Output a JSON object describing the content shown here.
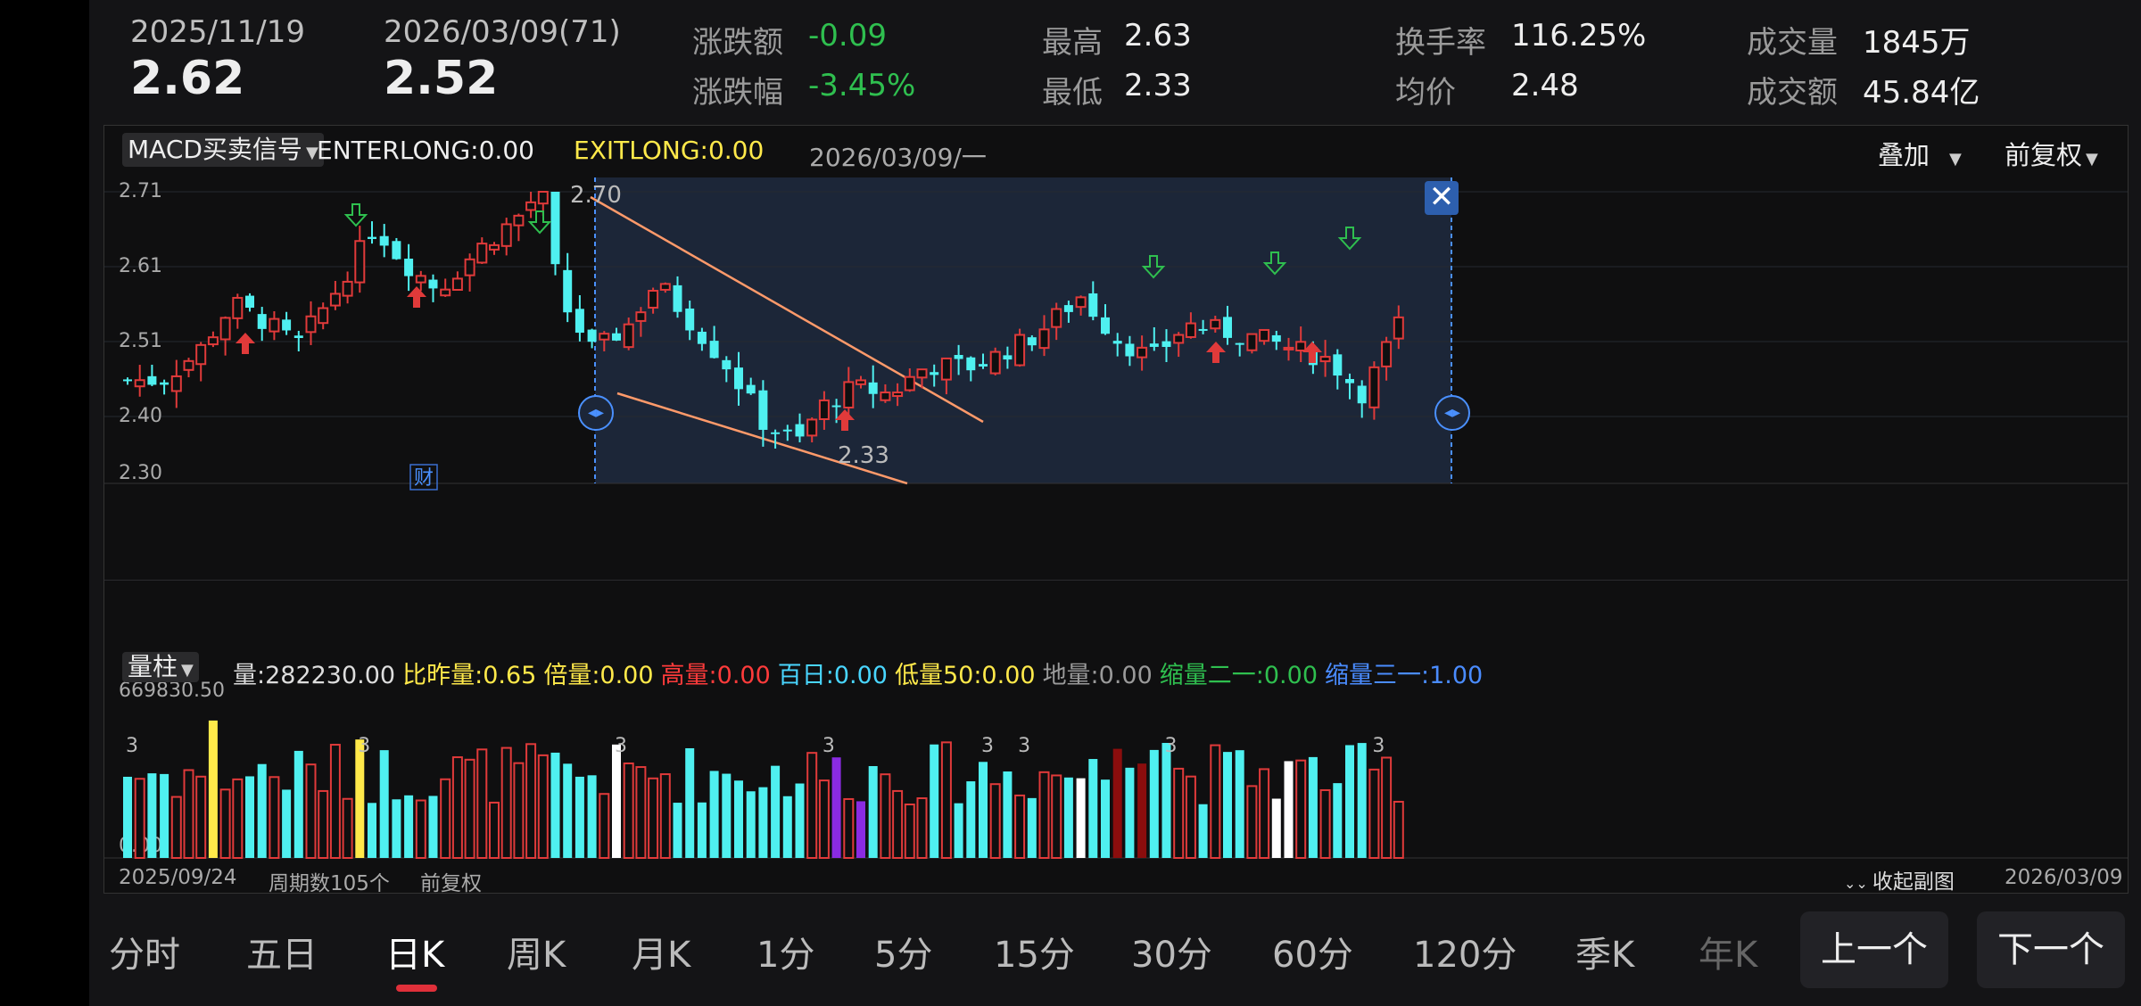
{
  "header": {
    "date1": "2025/11/19",
    "price1": "2.62",
    "date2": "2026/03/09(71)",
    "price2": "2.52",
    "stats": [
      {
        "label": "涨跌额",
        "value": "-0.09",
        "color": "#2fbf4f"
      },
      {
        "label": "涨跌幅",
        "value": "-3.45%",
        "color": "#2fbf4f"
      },
      {
        "label": "最高",
        "value": "2.63"
      },
      {
        "label": "最低",
        "value": "2.33"
      },
      {
        "label": "换手率",
        "value": "116.25%"
      },
      {
        "label": "均价",
        "value": "2.48"
      },
      {
        "label": "成交量",
        "value": "1845万"
      },
      {
        "label": "成交额",
        "value": "45.84亿"
      }
    ]
  },
  "main_indicator": {
    "selector": "MACD买卖信号",
    "enterlong": "ENTERLONG:0.00",
    "exitlong": "EXITLONG:0.00",
    "date": "2026/03/09/一",
    "overlay": "叠加",
    "adjust": "前复权"
  },
  "price_axis": [
    "2.71",
    "2.61",
    "2.51",
    "2.40",
    "2.30"
  ],
  "annotations": {
    "high_label": "2.70",
    "low_label": "2.33",
    "cai": "财"
  },
  "volume_indicator": {
    "selector": "量柱",
    "items": [
      {
        "text": "量:282230.00",
        "color": "#dddddd"
      },
      {
        "text": "比昨量:0.65",
        "color": "#ffe94a"
      },
      {
        "text": "倍量:0.00",
        "color": "#ffe94a"
      },
      {
        "text": "高量:0.00",
        "color": "#ff3b3b"
      },
      {
        "text": "百日:0.00",
        "color": "#49d6ff"
      },
      {
        "text": "低量50:0.00",
        "color": "#ffe94a"
      },
      {
        "text": "地量:0.00",
        "color": "#9a9a9a"
      },
      {
        "text": "缩量二一:0.00",
        "color": "#2fbf4f"
      },
      {
        "text": "缩量三一:1.00",
        "color": "#4a8cff"
      }
    ],
    "max_label": "669830.50",
    "zero_label": "0.00",
    "mark": "3"
  },
  "footer": {
    "start_date": "2025/09/24",
    "periods": "周期数105个",
    "adjust": "前复权",
    "collapse": "收起副图",
    "end_date": "2026/03/09"
  },
  "tabs": [
    "分时",
    "五日",
    "日K",
    "周K",
    "月K",
    "1分",
    "5分",
    "15分",
    "30分",
    "60分",
    "120分",
    "季K",
    "年K"
  ],
  "active_tab": "日K",
  "nav": {
    "prev": "上一个",
    "next": "下一个"
  },
  "colors": {
    "up": "#e03a3a",
    "down": "#4ff0f0",
    "selection_bg": "#1c2638",
    "trendline": "#ff9a6a"
  }
}
